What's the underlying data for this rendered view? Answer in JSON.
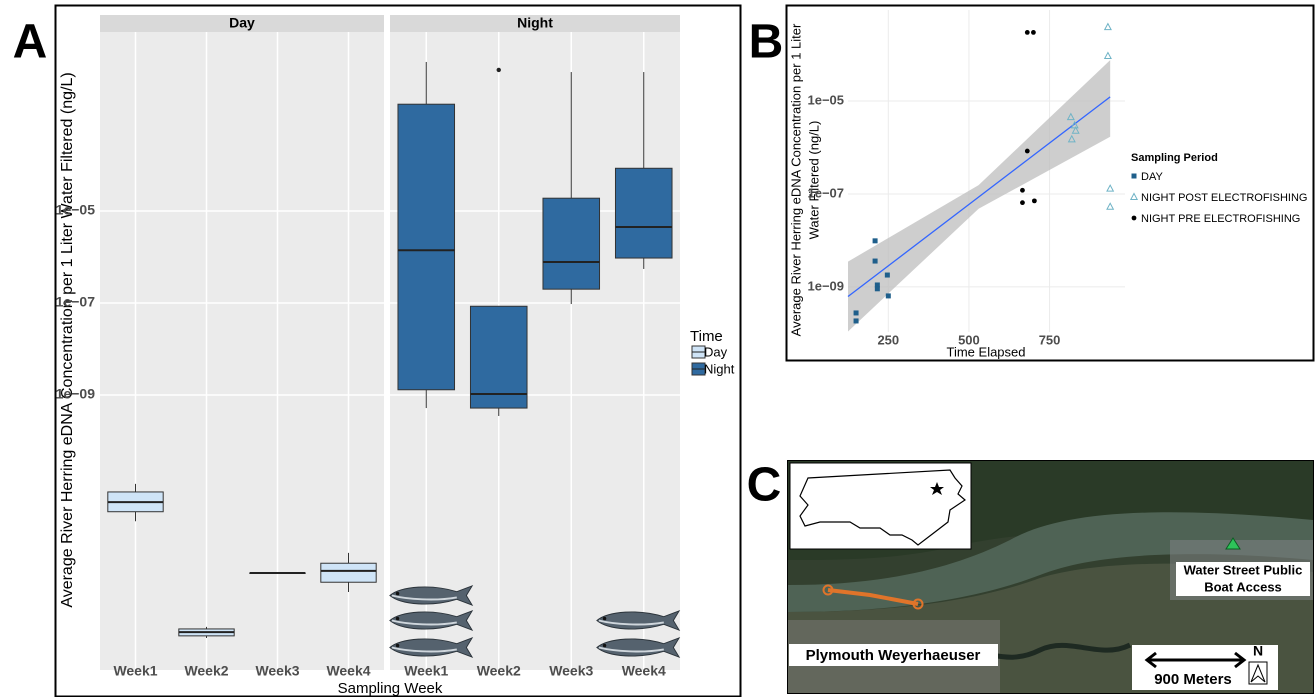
{
  "chart_data": [
    {
      "type": "boxplot",
      "panel_label": "A",
      "x_label": "Sampling Week",
      "y_label": "Average River Herring eDNA Concentration per 1 Liter Water Filtered (ng/L)",
      "log_y": true,
      "grid": true,
      "ylim": [
        1.05e-15,
        0.078
      ],
      "yticks": [
        {
          "value": 1e-05,
          "label": "1e−05"
        },
        {
          "value": 1e-07,
          "label": "1e−07"
        },
        {
          "value": 1e-09,
          "label": "1e−09"
        }
      ],
      "categories": [
        "Week1",
        "Week2",
        "Week3",
        "Week4"
      ],
      "legend_title": "Time",
      "legend_position": "right",
      "facets": [
        {
          "name": "Day",
          "color": "#cfe4f7",
          "boxes": [
            {
              "whisker_low": 1.8e-12,
              "q1": 2.9e-12,
              "median": 4.7e-12,
              "q3": 7.8e-12,
              "whisker_high": 1.17e-11,
              "outliers": []
            },
            {
              "whisker_low": 5.2e-15,
              "q1": 5.8e-15,
              "median": 7e-15,
              "q3": 8.2e-15,
              "whisker_high": 9.1e-15,
              "outliers": []
            },
            {
              "whisker_low": 1.35e-13,
              "q1": 1.35e-13,
              "median": 1.35e-13,
              "q3": 1.35e-13,
              "whisker_high": 1.35e-13,
              "outliers": []
            },
            {
              "whisker_low": 5.2e-14,
              "q1": 8.5e-14,
              "median": 1.5e-13,
              "q3": 2.2e-13,
              "whisker_high": 3.7e-13,
              "outliers": []
            }
          ]
        },
        {
          "name": "Night",
          "color": "#2f6aa0",
          "boxes": [
            {
              "whisker_low": 5.2e-10,
              "q1": 1.3e-09,
              "median": 1.4e-06,
              "q3": 0.0021,
              "whisker_high": 0.0174,
              "outliers": []
            },
            {
              "whisker_low": 3.5e-10,
              "q1": 5.2e-10,
              "median": 1.05e-09,
              "q3": 8.5e-08,
              "whisker_high": 8.5e-08,
              "outliers": [
                0.0117
              ]
            },
            {
              "whisker_low": 9.5e-08,
              "q1": 2e-07,
              "median": 7.8e-07,
              "q3": 1.9e-05,
              "whisker_high": 0.0105,
              "outliers": []
            },
            {
              "whisker_low": 5.5e-07,
              "q1": 9.5e-07,
              "median": 4.5e-06,
              "q3": 8.5e-05,
              "whisker_high": 0.0105,
              "outliers": []
            }
          ]
        }
      ]
    },
    {
      "type": "scatter",
      "panel_label": "B",
      "x_label": "Time Elapsed",
      "y_label": [
        "Average River Herring eDNA Concentration per 1 Liter",
        "Water Filtered (ng/L)"
      ],
      "log_y": true,
      "grid": true,
      "xlim": [
        125,
        984
      ],
      "ylim": [
        1.07e-10,
        0.00091
      ],
      "xticks": [
        250,
        500,
        750
      ],
      "yticks": [
        {
          "value": 1e-05,
          "label": "1e−05"
        },
        {
          "value": 1e-07,
          "label": "1e−07"
        },
        {
          "value": 1e-09,
          "label": "1e−09"
        }
      ],
      "legend_title": "Sampling Period",
      "legend_position": "right",
      "series": [
        {
          "name": "DAY",
          "color": "#1f5f8b",
          "marker": "square",
          "x": [
            150,
            150,
            209,
            209,
            216,
            216,
            247,
            250
          ],
          "values": [
            2.75e-10,
            1.85e-10,
            9.8e-09,
            3.6e-09,
            1.1e-09,
            9.1e-10,
            1.8e-09,
            6.4e-10
          ]
        },
        {
          "name": "NIGHT POST ELECTROFISHING",
          "color": "#6fb3c6",
          "marker": "triangle",
          "x": [
            816,
            828,
            831,
            819,
            931,
            931,
            938,
            938
          ],
          "values": [
            4.5e-06,
            3e-06,
            2.3e-06,
            1.5e-06,
            0.00039,
            9.3e-05,
            1.3e-07,
            5.3e-08
          ]
        },
        {
          "name": "NIGHT PRE ELECTROFISHING",
          "color": "#000000",
          "marker": "circle",
          "x": [
            681,
            700,
            681,
            666,
            666,
            703
          ],
          "values": [
            0.0003,
            0.0003,
            8.4e-07,
            1.2e-07,
            6.5e-08,
            7.1e-08
          ]
        }
      ],
      "fit": {
        "color": "#3366ff",
        "x": [
          125,
          938
        ],
        "values": [
          6.2e-10,
          1.23e-05
        ]
      },
      "fit_band": {
        "color": "#bdbdbd",
        "x": [
          125,
          530,
          938
        ],
        "upper": [
          3.5e-09,
          1.55e-07,
          7.6e-05
        ],
        "lower": [
          1.1e-10,
          4.8e-08,
          1.7e-06
        ]
      }
    }
  ],
  "map": {
    "panel_label": "C",
    "boat_access": [
      "Water Street Public",
      "Boat Access"
    ],
    "site": "Plymouth Weyerhaeuser",
    "scale": "900 Meters",
    "north": "N"
  }
}
